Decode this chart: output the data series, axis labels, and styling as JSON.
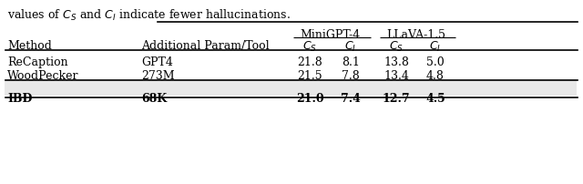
{
  "caption": "values of $C_S$ and $C_I$ indicate fewer hallucinations.",
  "col_groups": [
    {
      "label": "MiniGPT-4",
      "cols": [
        "$C_S$",
        "$C_I$"
      ]
    },
    {
      "label": "LLaVA-1.5",
      "cols": [
        "$C_S$",
        "$C_I$"
      ]
    }
  ],
  "header_row": [
    "Method",
    "Additional Param/Tool",
    "$C_S$",
    "$C_I$",
    "$C_S$",
    "$C_I$"
  ],
  "rows": [
    {
      "method": "ReCaption",
      "param": "GPT4",
      "vals": [
        "21.8",
        "8.1",
        "13.8",
        "5.0"
      ],
      "bold": false
    },
    {
      "method": "WoodPecker",
      "param": "273M",
      "vals": [
        "21.5",
        "7.8",
        "13.4",
        "4.8"
      ],
      "bold": false
    },
    {
      "method": "IBD",
      "param": "68K",
      "vals": [
        "21.0",
        "7.4",
        "12.7",
        "4.5"
      ],
      "bold": true
    }
  ],
  "highlight_color": "#e8e8e8",
  "bg_color": "#ffffff",
  "font_size": 9,
  "title_font_size": 9
}
